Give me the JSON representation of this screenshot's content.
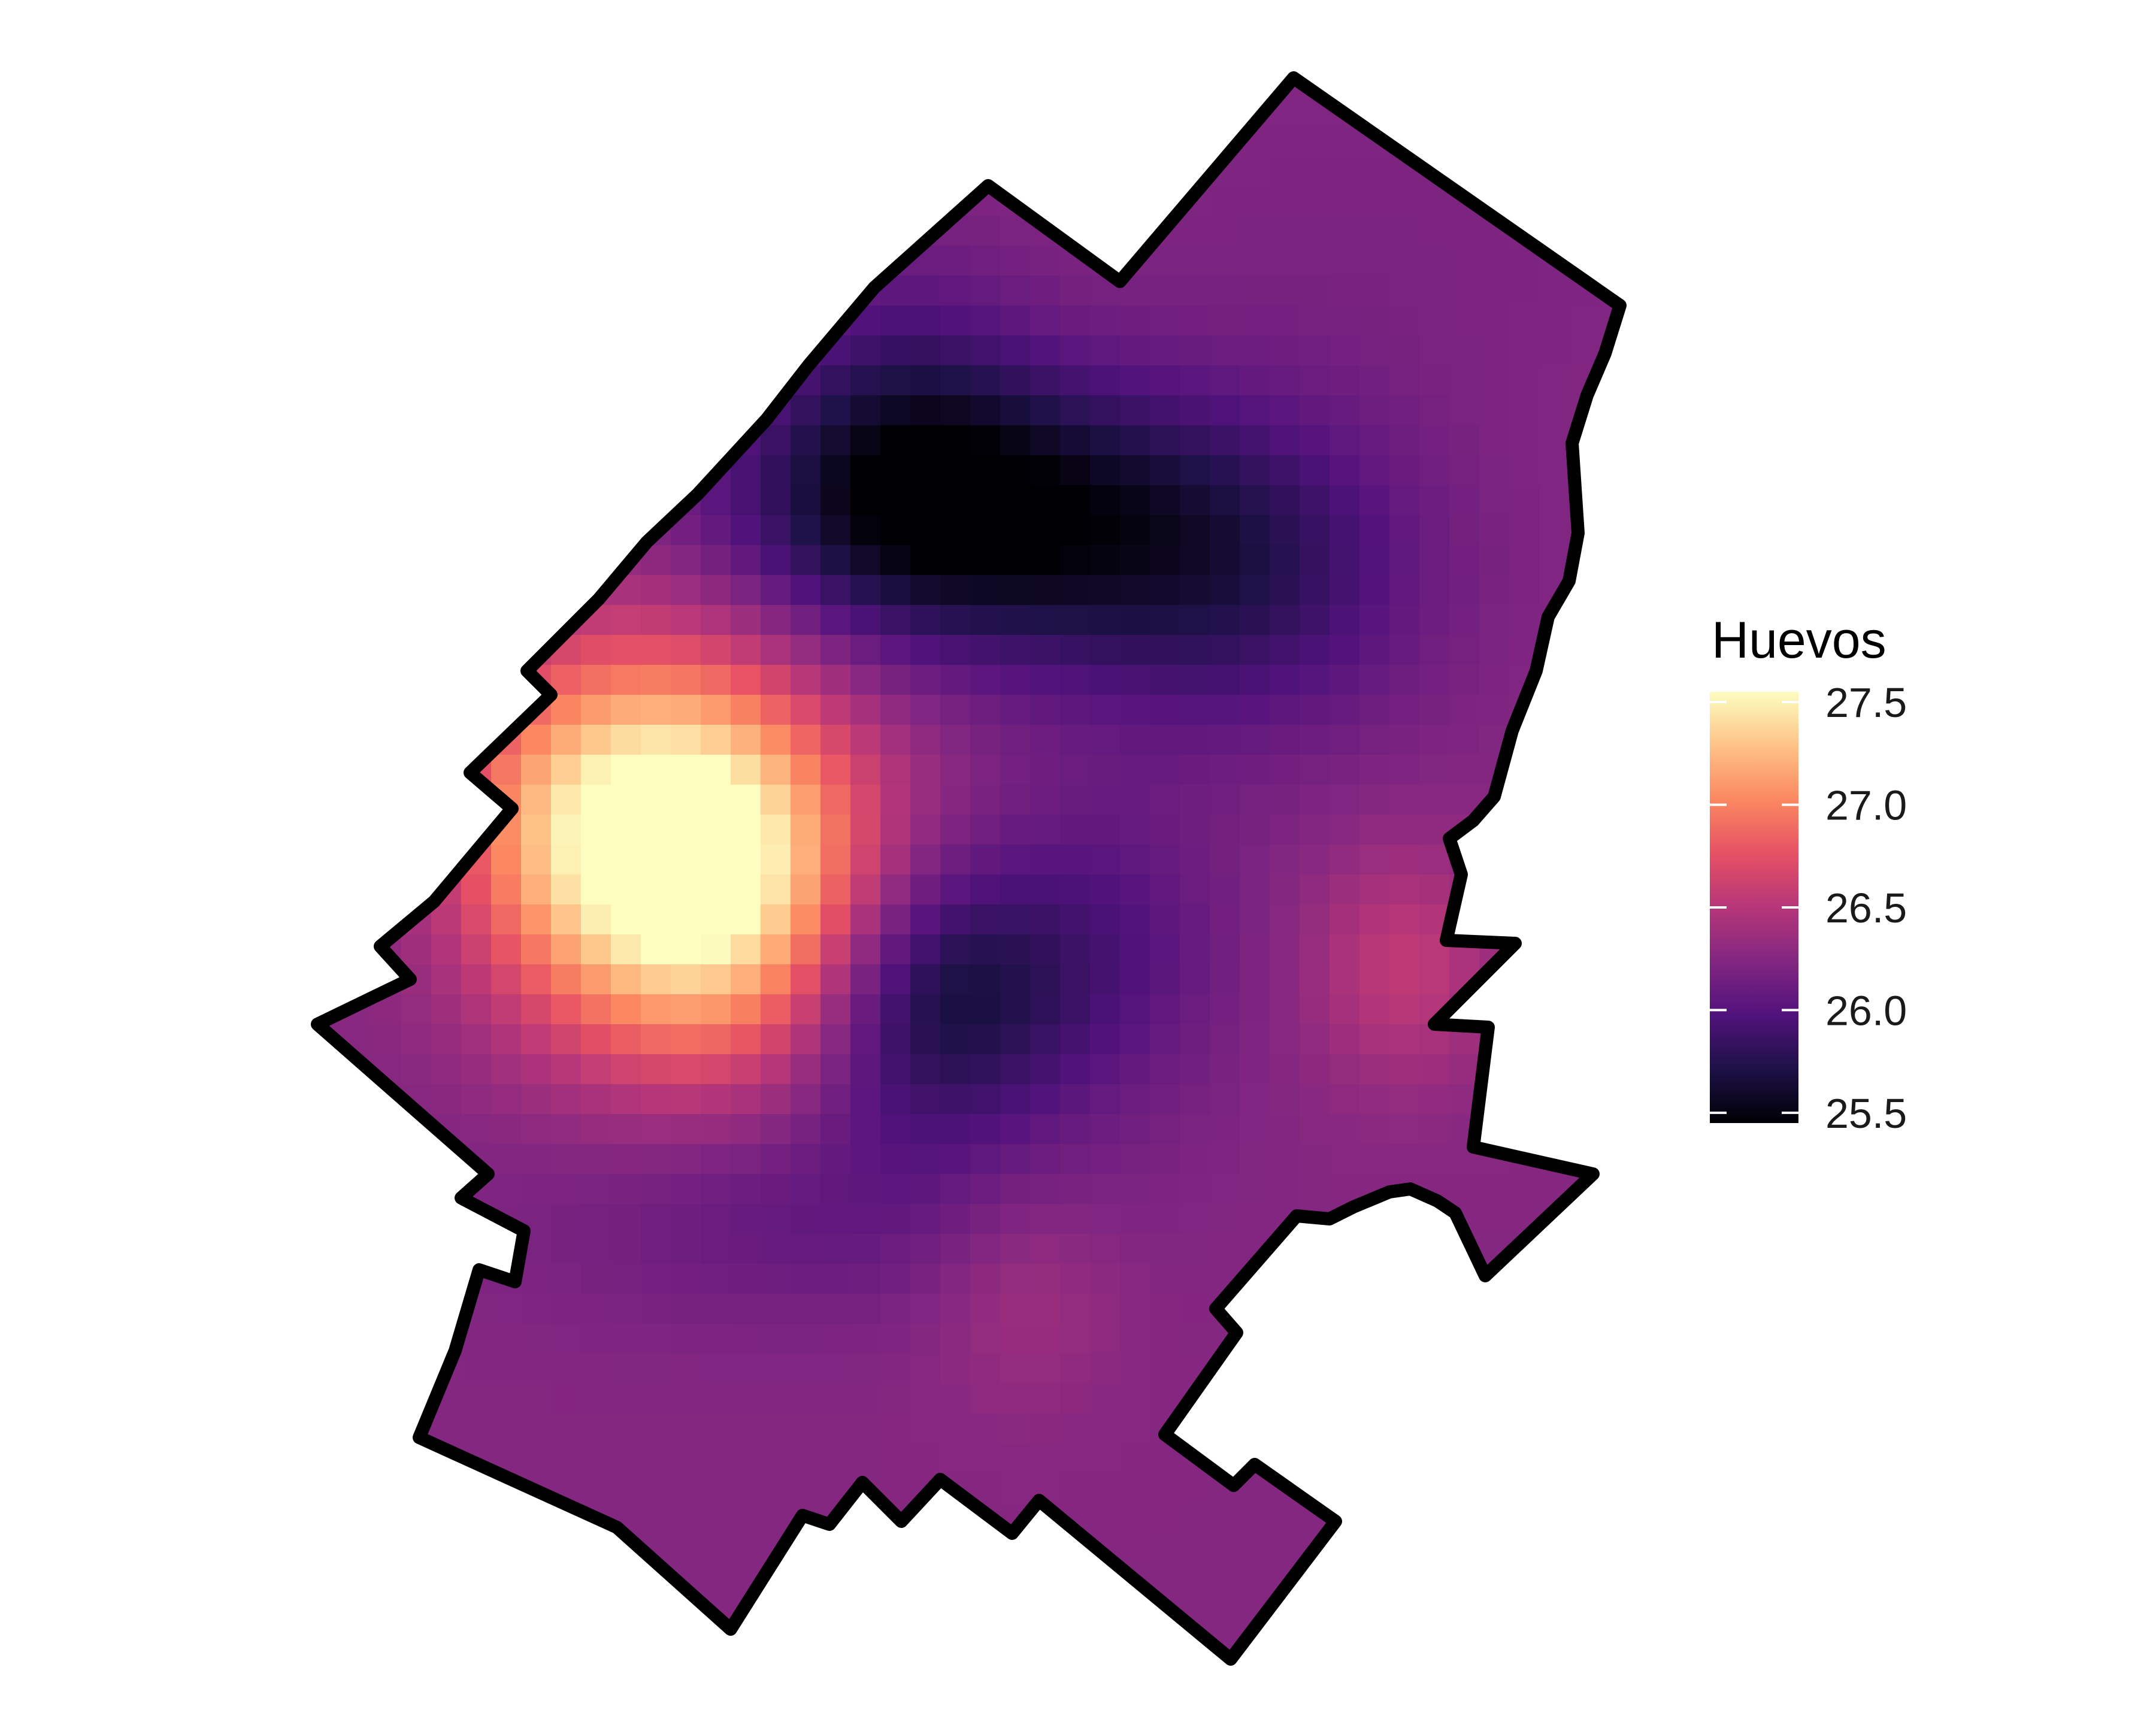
{
  "chart_data": {
    "type": "heatmap",
    "title": "",
    "subtitle": "",
    "xlabel": "",
    "ylabel": "",
    "grid": false,
    "legend": {
      "title": "Huevos",
      "placement": "right",
      "range": [
        25.45,
        27.55
      ],
      "ticks": [
        {
          "value": 27.5,
          "label": "27.5"
        },
        {
          "value": 27.0,
          "label": "27.0"
        },
        {
          "value": 26.5,
          "label": "26.5"
        },
        {
          "value": 26.0,
          "label": "26.0"
        },
        {
          "value": 25.5,
          "label": "25.5"
        }
      ]
    },
    "palette": {
      "name": "magma",
      "stops": [
        "#000004",
        "#1d1147",
        "#51127c",
        "#822681",
        "#b63679",
        "#e65164",
        "#fb8861",
        "#fec287",
        "#fcfdbf"
      ]
    },
    "border_color": "#000000",
    "surface": {
      "base": 26.25,
      "hotspots": [
        {
          "x": 0.3,
          "y": 0.51,
          "dv": 1.25,
          "sx": 0.09,
          "sy": 0.08
        },
        {
          "x": 0.26,
          "y": 0.45,
          "dv": 0.55,
          "sx": 0.08,
          "sy": 0.08
        },
        {
          "x": 0.17,
          "y": 0.47,
          "dv": 0.35,
          "sx": 0.06,
          "sy": 0.07
        },
        {
          "x": 0.5,
          "y": 0.28,
          "dv": -0.75,
          "sx": 0.13,
          "sy": 0.06
        },
        {
          "x": 0.45,
          "y": 0.22,
          "dv": -0.3,
          "sx": 0.07,
          "sy": 0.07
        },
        {
          "x": 0.7,
          "y": 0.32,
          "dv": -0.4,
          "sx": 0.1,
          "sy": 0.07
        },
        {
          "x": 0.47,
          "y": 0.58,
          "dv": -0.6,
          "sx": 0.07,
          "sy": 0.06
        },
        {
          "x": 0.6,
          "y": 0.55,
          "dv": -0.25,
          "sx": 0.07,
          "sy": 0.07
        },
        {
          "x": 0.37,
          "y": 0.71,
          "dv": -0.2,
          "sx": 0.14,
          "sy": 0.05
        },
        {
          "x": 0.83,
          "y": 0.56,
          "dv": 0.3,
          "sx": 0.05,
          "sy": 0.05
        },
        {
          "x": 0.54,
          "y": 0.76,
          "dv": 0.15,
          "sx": 0.05,
          "sy": 0.05
        },
        {
          "x": 0.8,
          "y": 0.12,
          "dv": -0.05,
          "sx": 0.15,
          "sy": 0.08
        }
      ]
    }
  }
}
